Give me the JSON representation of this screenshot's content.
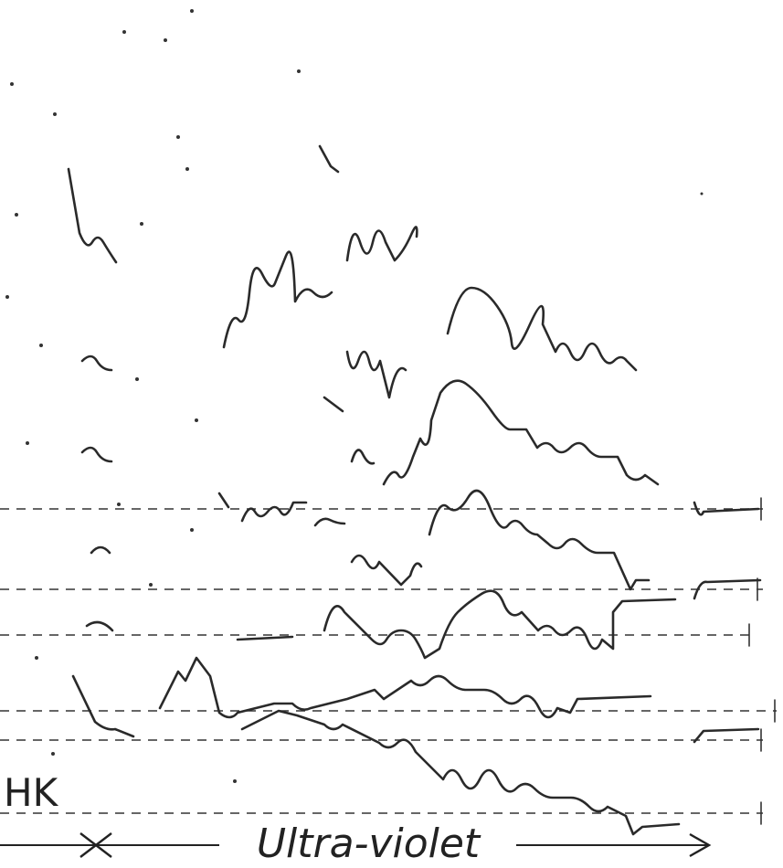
{
  "labels": {
    "hk": "HK",
    "ultraviolet": "Ultra-violet"
  }
}
